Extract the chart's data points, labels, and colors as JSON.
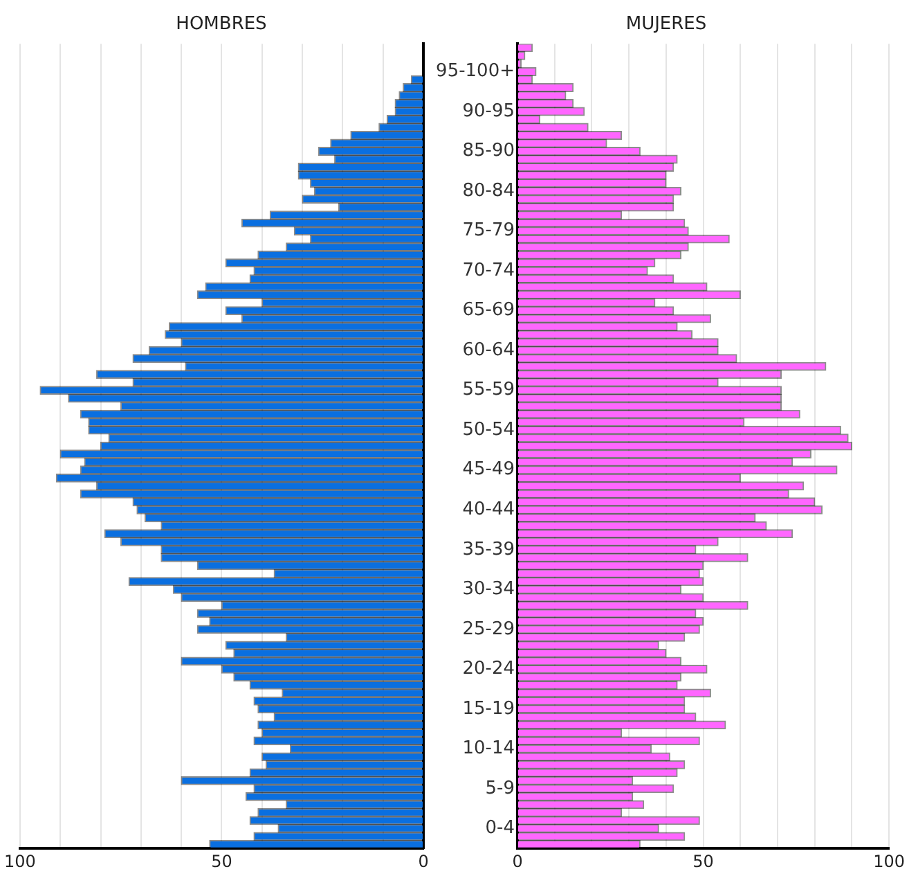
{
  "chart_data": [
    {
      "type": "bar",
      "title": "HOMBRES",
      "orientation": "horizontal",
      "tick_labels": "x",
      "grid": "x",
      "legend": false,
      "color": "#0a6fe0",
      "categories": [
        null,
        null,
        null,
        null,
        null,
        null,
        null,
        null,
        null,
        null,
        null,
        null,
        null,
        null,
        null,
        null,
        null,
        null,
        null,
        null,
        null,
        null,
        null,
        null,
        null,
        null,
        null,
        null,
        null,
        null,
        null,
        null,
        null,
        null,
        null,
        null,
        null,
        null,
        null,
        null,
        null,
        null,
        null,
        null,
        null,
        null,
        null,
        null,
        null,
        null,
        null,
        null,
        null,
        null,
        null,
        null,
        null,
        null,
        null,
        null,
        null,
        null,
        null,
        null,
        null,
        null,
        null,
        null,
        null,
        null,
        null,
        null,
        null,
        null,
        null,
        null,
        null,
        null,
        null,
        null,
        null,
        null,
        null,
        null,
        null,
        null,
        null,
        null,
        null,
        null,
        null,
        null,
        null,
        null,
        null,
        null,
        null,
        null,
        null,
        null,
        null
      ],
      "values": [
        0,
        0,
        0,
        0,
        3,
        5,
        6,
        7,
        7,
        9,
        11,
        18,
        23,
        26,
        22,
        31,
        31,
        28,
        27,
        30,
        21,
        38,
        45,
        32,
        28,
        34,
        41,
        49,
        42,
        43,
        54,
        56,
        40,
        49,
        45,
        63,
        64,
        60,
        68,
        72,
        59,
        81,
        72,
        95,
        88,
        75,
        85,
        83,
        83,
        78,
        80,
        90,
        84,
        85,
        91,
        81,
        85,
        72,
        71,
        69,
        65,
        79,
        75,
        65,
        65,
        56,
        37,
        73,
        62,
        60,
        50,
        56,
        53,
        56,
        34,
        49,
        47,
        60,
        50,
        47,
        43,
        35,
        42,
        41,
        37,
        41,
        40,
        42,
        33,
        40,
        39,
        43,
        60,
        42,
        44,
        34,
        41,
        43,
        36,
        42,
        53
      ],
      "xlim": [
        100,
        0
      ],
      "xticks": [
        100,
        {
          "value": 90,
          "label": null
        },
        {
          "value": 80,
          "label": null
        },
        {
          "value": 70,
          "label": null
        },
        {
          "value": 60,
          "label": null
        },
        50,
        {
          "value": 40,
          "label": null
        },
        {
          "value": 30,
          "label": null
        },
        {
          "value": 20,
          "label": null
        },
        {
          "value": 10,
          "label": null
        },
        0
      ]
    },
    {
      "type": "bar",
      "title": "MUJERES",
      "orientation": "horizontal",
      "grid": "x",
      "legend": false,
      "color": "#ff66ff",
      "categories": [
        null,
        null,
        null,
        "95-100+",
        null,
        null,
        null,
        null,
        "90-95",
        null,
        null,
        null,
        null,
        "85-90",
        null,
        null,
        null,
        null,
        "80-84",
        null,
        null,
        null,
        null,
        "75-79",
        null,
        null,
        null,
        null,
        "70-74",
        null,
        null,
        null,
        null,
        "65-69",
        null,
        null,
        null,
        null,
        "60-64",
        null,
        null,
        null,
        null,
        "55-59",
        null,
        null,
        null,
        null,
        "50-54",
        null,
        null,
        null,
        null,
        "45-49",
        null,
        null,
        null,
        null,
        "40-44",
        null,
        null,
        null,
        null,
        "35-39",
        null,
        null,
        null,
        null,
        "30-34",
        null,
        null,
        null,
        null,
        "25-29",
        null,
        null,
        null,
        null,
        "20-24",
        null,
        null,
        null,
        null,
        "15-19",
        null,
        null,
        null,
        null,
        "10-14",
        null,
        null,
        null,
        null,
        "5-9",
        null,
        null,
        null,
        null,
        "0-4",
        null,
        null
      ],
      "values": [
        4,
        2,
        1,
        5,
        4,
        15,
        13,
        15,
        18,
        6,
        19,
        28,
        24,
        33,
        43,
        42,
        40,
        40,
        44,
        42,
        42,
        28,
        45,
        46,
        57,
        46,
        44,
        37,
        35,
        42,
        51,
        60,
        37,
        42,
        52,
        43,
        47,
        54,
        54,
        59,
        83,
        71,
        54,
        71,
        71,
        71,
        76,
        61,
        87,
        89,
        90,
        79,
        74,
        86,
        60,
        77,
        73,
        80,
        82,
        64,
        67,
        74,
        54,
        48,
        62,
        50,
        49,
        50,
        44,
        50,
        62,
        48,
        50,
        49,
        45,
        38,
        40,
        44,
        51,
        44,
        43,
        52,
        45,
        45,
        48,
        56,
        28,
        49,
        36,
        41,
        45,
        43,
        31,
        42,
        31,
        34,
        28,
        49,
        38,
        45,
        33
      ],
      "xlim": [
        0,
        100
      ],
      "xticks": [
        0,
        {
          "value": 10,
          "label": null
        },
        {
          "value": 20,
          "label": null
        },
        {
          "value": 30,
          "label": null
        },
        {
          "value": 40,
          "label": null
        },
        50,
        {
          "value": 60,
          "label": null
        },
        {
          "value": 70,
          "label": null
        },
        {
          "value": 80,
          "label": null
        },
        {
          "value": 90,
          "label": null
        },
        100
      ]
    }
  ]
}
